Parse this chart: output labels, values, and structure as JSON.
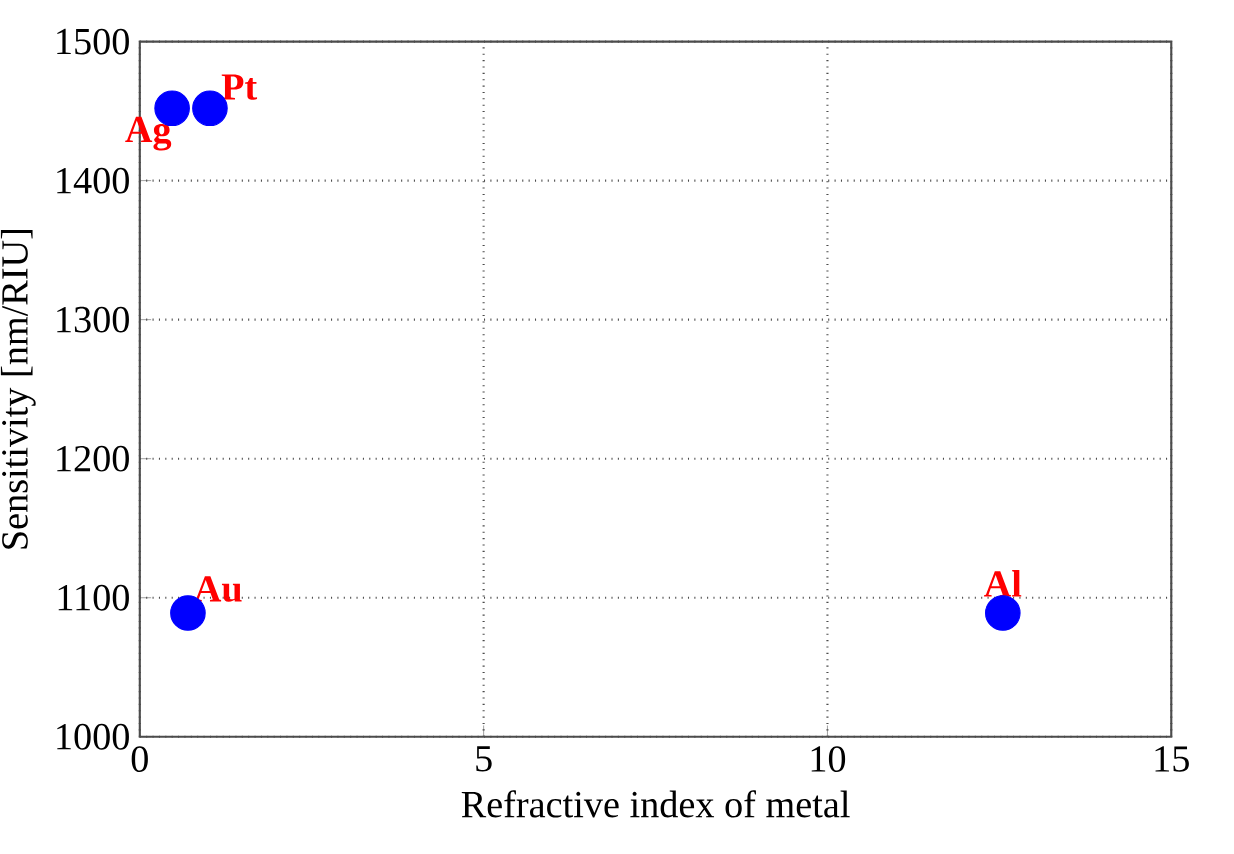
{
  "chart_data": {
    "type": "scatter",
    "xlabel": "Refractive index of metal",
    "ylabel": "Sensitivity [nm/RIU]",
    "x": [
      0.47,
      1.02,
      0.7,
      12.55
    ],
    "values": [
      1452,
      1452,
      1089,
      1089
    ],
    "color": "#0000ff",
    "marker": "circle",
    "xlim": [
      0,
      15
    ],
    "xticks": [
      0,
      5,
      10,
      15
    ],
    "ylim": [
      1000,
      1500
    ],
    "yticks": [
      1000,
      1100,
      1200,
      1300,
      1400,
      1500
    ],
    "grid": true,
    "line_style": "dotted",
    "annotations": [
      {
        "text": "Ag",
        "x": 0.47,
        "y": 1452
      },
      {
        "text": "Pt",
        "x": 1.02,
        "y": 1452
      },
      {
        "text": "Au",
        "x": 0.7,
        "y": 1089
      },
      {
        "text": "Al",
        "x": 12.55,
        "y": 1089
      }
    ]
  }
}
